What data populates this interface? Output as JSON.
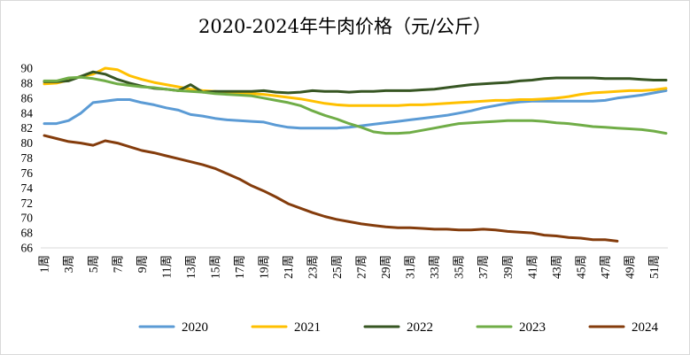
{
  "chart_data": {
    "type": "line",
    "title": "2020-2024年牛肉价格（元/公斤）",
    "xlabel": "",
    "ylabel": "",
    "ylim": [
      66,
      90
    ],
    "yticks": [
      66,
      68,
      70,
      72,
      74,
      76,
      78,
      80,
      82,
      84,
      86,
      88,
      90
    ],
    "xlim": [
      1,
      52
    ],
    "x_tick_labels": [
      "1周",
      "3周",
      "5周",
      "7周",
      "9周",
      "11周",
      "13周",
      "15周",
      "17周",
      "19周",
      "21周",
      "23周",
      "25周",
      "27周",
      "29周",
      "31周",
      "33周",
      "35周",
      "37周",
      "39周",
      "41周",
      "43周",
      "45周",
      "47周",
      "49周",
      "51周"
    ],
    "grid": false,
    "legend_position": "bottom",
    "series": [
      {
        "name": "2020",
        "color": "#5b9bd5",
        "x": [
          1,
          2,
          3,
          4,
          5,
          6,
          7,
          8,
          9,
          10,
          11,
          12,
          13,
          14,
          15,
          16,
          17,
          18,
          19,
          20,
          21,
          22,
          23,
          24,
          25,
          26,
          27,
          28,
          29,
          30,
          31,
          32,
          33,
          34,
          35,
          36,
          37,
          38,
          39,
          40,
          41,
          42,
          43,
          44,
          45,
          46,
          47,
          48,
          49,
          50,
          51,
          52
        ],
        "values": [
          82.6,
          82.6,
          83.0,
          84.0,
          85.4,
          85.6,
          85.8,
          85.8,
          85.4,
          85.1,
          84.7,
          84.4,
          83.8,
          83.6,
          83.3,
          83.1,
          83.0,
          82.9,
          82.8,
          82.4,
          82.1,
          82.0,
          82.0,
          82.0,
          82.0,
          82.1,
          82.3,
          82.5,
          82.7,
          82.9,
          83.1,
          83.3,
          83.5,
          83.7,
          84.0,
          84.3,
          84.7,
          85.0,
          85.3,
          85.5,
          85.6,
          85.6,
          85.6,
          85.6,
          85.6,
          85.6,
          85.7,
          86.0,
          86.2,
          86.4,
          86.7,
          87.0
        ]
      },
      {
        "name": "2021",
        "color": "#ffc000",
        "x": [
          1,
          2,
          3,
          4,
          5,
          6,
          7,
          8,
          9,
          10,
          11,
          12,
          13,
          14,
          15,
          16,
          17,
          18,
          19,
          20,
          21,
          22,
          23,
          24,
          25,
          26,
          27,
          28,
          29,
          30,
          31,
          32,
          33,
          34,
          35,
          36,
          37,
          38,
          39,
          40,
          41,
          42,
          43,
          44,
          45,
          46,
          47,
          48,
          49,
          50,
          51,
          52
        ],
        "values": [
          87.9,
          88.0,
          88.4,
          88.9,
          89.2,
          90.0,
          89.8,
          89.0,
          88.5,
          88.1,
          87.8,
          87.5,
          87.2,
          87.0,
          86.9,
          86.8,
          86.7,
          86.6,
          86.5,
          86.3,
          86.1,
          85.9,
          85.6,
          85.3,
          85.1,
          85.0,
          85.0,
          85.0,
          85.0,
          85.0,
          85.1,
          85.1,
          85.2,
          85.3,
          85.4,
          85.5,
          85.6,
          85.7,
          85.7,
          85.8,
          85.8,
          85.9,
          86.0,
          86.2,
          86.5,
          86.7,
          86.8,
          86.9,
          87.0,
          87.0,
          87.1,
          87.3
        ]
      },
      {
        "name": "2022",
        "color": "#375623",
        "x": [
          1,
          2,
          3,
          4,
          5,
          6,
          7,
          8,
          9,
          10,
          11,
          12,
          13,
          14,
          15,
          16,
          17,
          18,
          19,
          20,
          21,
          22,
          23,
          24,
          25,
          26,
          27,
          28,
          29,
          30,
          31,
          32,
          33,
          34,
          35,
          36,
          37,
          38,
          39,
          40,
          41,
          42,
          43,
          44,
          45,
          46,
          47,
          48,
          49,
          50,
          51,
          52
        ],
        "values": [
          88.2,
          88.2,
          88.3,
          88.9,
          89.5,
          89.2,
          88.5,
          88.0,
          87.6,
          87.3,
          87.2,
          87.0,
          87.8,
          86.8,
          86.9,
          86.9,
          86.9,
          86.9,
          87.0,
          86.8,
          86.7,
          86.8,
          87.0,
          86.9,
          86.9,
          86.8,
          86.9,
          86.9,
          87.0,
          87.0,
          87.0,
          87.1,
          87.2,
          87.4,
          87.6,
          87.8,
          87.9,
          88.0,
          88.1,
          88.3,
          88.4,
          88.6,
          88.7,
          88.7,
          88.7,
          88.7,
          88.6,
          88.6,
          88.6,
          88.5,
          88.4,
          88.4
        ]
      },
      {
        "name": "2023",
        "color": "#70ad47",
        "x": [
          1,
          2,
          3,
          4,
          5,
          6,
          7,
          8,
          9,
          10,
          11,
          12,
          13,
          14,
          15,
          16,
          17,
          18,
          19,
          20,
          21,
          22,
          23,
          24,
          25,
          26,
          27,
          28,
          29,
          30,
          31,
          32,
          33,
          34,
          35,
          36,
          37,
          38,
          39,
          40,
          41,
          42,
          43,
          44,
          45,
          46,
          47,
          48,
          49,
          50,
          51,
          52
        ],
        "values": [
          88.3,
          88.3,
          88.7,
          88.8,
          88.6,
          88.3,
          87.9,
          87.7,
          87.5,
          87.4,
          87.2,
          87.0,
          86.9,
          86.8,
          86.6,
          86.5,
          86.4,
          86.3,
          86.0,
          85.7,
          85.4,
          85.0,
          84.3,
          83.7,
          83.2,
          82.6,
          82.1,
          81.5,
          81.3,
          81.3,
          81.4,
          81.7,
          82.0,
          82.3,
          82.6,
          82.7,
          82.8,
          82.9,
          83.0,
          83.0,
          83.0,
          82.9,
          82.7,
          82.6,
          82.4,
          82.2,
          82.1,
          82.0,
          81.9,
          81.8,
          81.6,
          81.3
        ]
      },
      {
        "name": "2024",
        "color": "#843c0c",
        "x": [
          1,
          2,
          3,
          4,
          5,
          6,
          7,
          8,
          9,
          10,
          11,
          12,
          13,
          14,
          15,
          16,
          17,
          18,
          19,
          20,
          21,
          22,
          23,
          24,
          25,
          26,
          27,
          28,
          29,
          30,
          31,
          32,
          33,
          34,
          35,
          36,
          37,
          38,
          39,
          40,
          41,
          42,
          43,
          44,
          45,
          46,
          47,
          48
        ],
        "values": [
          81.0,
          80.6,
          80.2,
          80.0,
          79.7,
          80.3,
          80.0,
          79.5,
          79.0,
          78.7,
          78.3,
          77.9,
          77.5,
          77.1,
          76.6,
          75.9,
          75.2,
          74.3,
          73.6,
          72.8,
          71.9,
          71.3,
          70.7,
          70.2,
          69.8,
          69.5,
          69.2,
          69.0,
          68.8,
          68.7,
          68.7,
          68.6,
          68.5,
          68.5,
          68.4,
          68.4,
          68.5,
          68.4,
          68.2,
          68.1,
          68.0,
          67.7,
          67.6,
          67.4,
          67.3,
          67.1,
          67.1,
          66.9
        ]
      }
    ]
  }
}
